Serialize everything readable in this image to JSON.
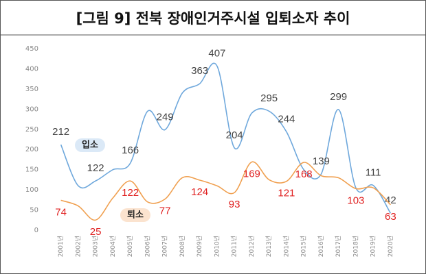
{
  "chart_data": {
    "type": "line",
    "title": "[그림 9] 전북 장애인거주시설 입퇴소자 추이",
    "categories": [
      "2001년",
      "2002년",
      "2003년",
      "2004년",
      "2005년",
      "2006년",
      "2007년",
      "2008년",
      "2009년",
      "2010년",
      "2011년",
      "2012년",
      "2013년",
      "2014년",
      "2015년",
      "2016년",
      "2017년",
      "2018년",
      "2019년",
      "2020년"
    ],
    "series": [
      {
        "name": "입소",
        "color": "#6fa8dc",
        "values": [
          212,
          110,
          122,
          150,
          166,
          295,
          249,
          340,
          363,
          407,
          204,
          290,
          295,
          244,
          150,
          139,
          299,
          105,
          111,
          42
        ],
        "value_labels": [
          "212",
          null,
          "122",
          null,
          "166",
          null,
          "249",
          null,
          "363",
          "407",
          "204",
          null,
          "295",
          "244",
          null,
          "139",
          "299",
          null,
          "111",
          "42"
        ]
      },
      {
        "name": "퇴소",
        "color": "#f0a050",
        "values": [
          74,
          60,
          25,
          80,
          122,
          70,
          77,
          130,
          124,
          110,
          93,
          169,
          125,
          121,
          168,
          135,
          130,
          103,
          105,
          63
        ],
        "value_labels": [
          "74",
          null,
          "25",
          null,
          "122",
          null,
          "77",
          null,
          "124",
          null,
          "93",
          "169",
          null,
          "121",
          "168",
          null,
          null,
          "103",
          null,
          "63"
        ]
      }
    ],
    "ylim": [
      0,
      450
    ],
    "yticks": [
      0,
      50,
      100,
      150,
      200,
      250,
      300,
      350,
      400,
      450
    ]
  }
}
